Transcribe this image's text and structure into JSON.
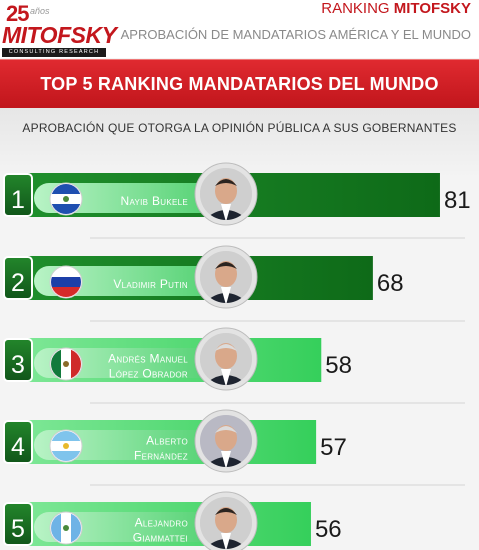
{
  "header": {
    "logo_number": "25",
    "logo_years": "años",
    "logo_word": "MITOFSKY",
    "logo_tagline": "CONSULTING RESEARCH",
    "ranking_prefix": "RANKING",
    "ranking_brand": "MITOFSKY",
    "subtitle": "APROBACIÓN DE MANDATARIOS AMÉRICA Y EL MUNDO"
  },
  "banner": {
    "title": "TOP 5 RANKING MANDATARIOS DEL MUNDO"
  },
  "caption": "APROBACIÓN QUE OTORGA LA OPINIÓN PÚBLICA A SUS GOBERNANTES",
  "colors": {
    "red": "#c3171d",
    "dark_green": "#12701c",
    "mid_green": "#1f9e33",
    "light_green": "#44d667",
    "badge_green": "#1a6e1f"
  },
  "chart_data": {
    "type": "bar",
    "orientation": "horizontal",
    "categories": [
      "Nayib Bukele",
      "Vladimir Putin",
      "Andrés Manuel López Obrador",
      "Alberto Fernández",
      "Alejandro Giammattei"
    ],
    "values": [
      81,
      68,
      58,
      57,
      56
    ],
    "title": "TOP 5 RANKING MANDATARIOS DEL MUNDO",
    "subtitle": "APROBACIÓN QUE OTORGA LA OPINIÓN PÚBLICA A SUS GOBERNANTES",
    "xlabel": "",
    "ylabel": "",
    "rows": [
      {
        "rank": "1",
        "name_lines": [
          "Nayib Bukele"
        ],
        "value": 81,
        "flag": "el-salvador-flag",
        "portrait": "portrait-icon"
      },
      {
        "rank": "2",
        "name_lines": [
          "Vladimir Putin"
        ],
        "value": 68,
        "flag": "russia-flag",
        "portrait": "portrait-icon"
      },
      {
        "rank": "3",
        "name_lines": [
          "Andrés Manuel",
          "López Obrador"
        ],
        "value": 58,
        "flag": "mexico-flag",
        "portrait": "portrait-icon"
      },
      {
        "rank": "4",
        "name_lines": [
          "Alberto",
          "Fernández"
        ],
        "value": 57,
        "flag": "argentina-flag",
        "portrait": "portrait-icon"
      },
      {
        "rank": "5",
        "name_lines": [
          "Alejandro",
          "Giammattei"
        ],
        "value": 56,
        "flag": "guatemala-flag",
        "portrait": "portrait-icon"
      }
    ]
  }
}
